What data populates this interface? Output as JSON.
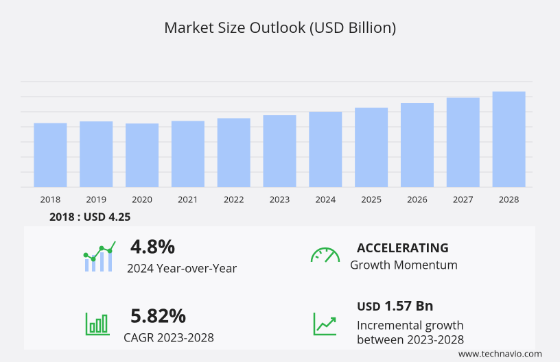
{
  "chart_data": {
    "type": "bar",
    "title": "Market Size Outlook (USD Billion)",
    "categories": [
      "2018",
      "2019",
      "2020",
      "2021",
      "2022",
      "2023",
      "2024",
      "2025",
      "2026",
      "2027",
      "2028"
    ],
    "values": [
      4.25,
      4.36,
      4.22,
      4.39,
      4.57,
      4.77,
      5.0,
      5.27,
      5.59,
      5.93,
      6.34
    ],
    "color": "#a8c8fb",
    "ylim": [
      0,
      7
    ],
    "yticks": [
      0,
      1,
      2,
      3,
      4,
      5,
      6,
      7
    ],
    "grid": true
  },
  "highlight": {
    "currency": ": USD"
  },
  "stats": [
    {
      "value": "4.8%",
      "label": "2024 Year-over-Year"
    },
    {
      "value": "ACCELERATING",
      "label": "Growth Momentum"
    },
    {
      "value": "5.82%",
      "label": "CAGR 2023-2028"
    },
    {
      "currency": "USD",
      "value": "1.57 Bn",
      "label_lines": [
        "Incremental growth",
        "between 2023-2028"
      ]
    }
  ],
  "footer": "www.technavio.com"
}
